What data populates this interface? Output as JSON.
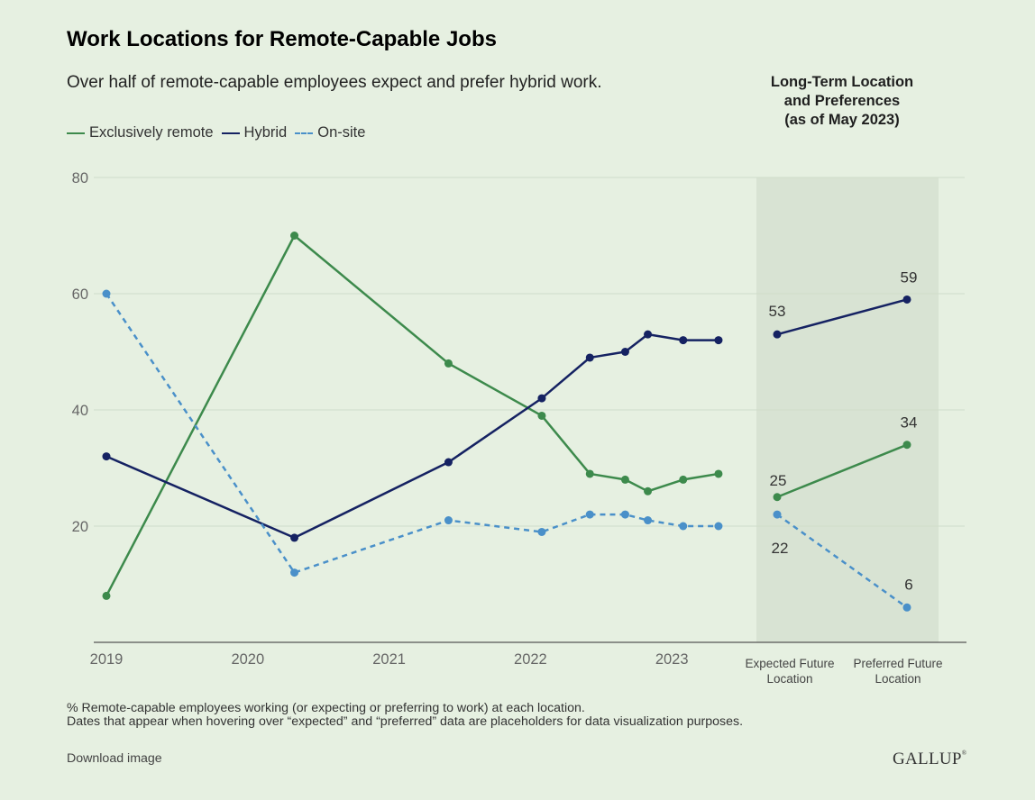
{
  "title": "Work Locations for Remote-Capable Jobs",
  "subtitle": "Over half of remote-capable employees expect and prefer hybrid work.",
  "side_panel": {
    "title_lines": [
      "Long-Term Location",
      "and Preferences",
      "(as of May 2023)"
    ]
  },
  "legend": [
    {
      "label": "Exclusively remote",
      "color": "#3d8a4c",
      "dashed": false
    },
    {
      "label": "Hybrid",
      "color": "#152262",
      "dashed": false
    },
    {
      "label": "On-site",
      "color": "#4a90c9",
      "dashed": true
    }
  ],
  "footnote": {
    "line1": "% Remote-capable employees working (or expecting or preferring to work) at each location.",
    "line2": "Dates that appear when hovering over “expected” and “preferred” data are placeholders for data visualization purposes."
  },
  "download_label": "Download image",
  "brand": {
    "name": "GALLUP",
    "mark": "®"
  },
  "chart_data": [
    {
      "type": "line",
      "title": "Work Locations for Remote-Capable Jobs",
      "subtitle": "Over half of remote-capable employees expect and prefer hybrid work.",
      "xlabel": "",
      "ylabel": "",
      "x": [
        2019.0,
        2020.33,
        2021.42,
        2022.08,
        2022.42,
        2022.67,
        2022.83,
        2023.08,
        2023.33
      ],
      "x_ticks": [
        2019,
        2020,
        2021,
        2022,
        2023
      ],
      "xlim": [
        2019,
        2023.33
      ],
      "ylim": [
        0,
        80
      ],
      "y_ticks": [
        20,
        40,
        60,
        80
      ],
      "grid": true,
      "legend_position": "top-left",
      "series": [
        {
          "name": "Exclusively remote",
          "color": "#3d8a4c",
          "dashed": false,
          "x": [
            2019.0,
            2020.33,
            2021.42,
            2022.08,
            2022.42,
            2022.67,
            2022.83,
            2023.08,
            2023.33
          ],
          "values": [
            8,
            70,
            48,
            39,
            29,
            28,
            26,
            28,
            29
          ]
        },
        {
          "name": "Hybrid",
          "color": "#152262",
          "dashed": false,
          "x": [
            2019.0,
            2020.33,
            2021.42,
            2022.08,
            2022.42,
            2022.67,
            2022.83,
            2023.08,
            2023.33
          ],
          "values": [
            32,
            18,
            31,
            42,
            49,
            50,
            53,
            52,
            52
          ]
        },
        {
          "name": "On-site",
          "color": "#4a90c9",
          "dashed": true,
          "x": [
            2019.0,
            2020.33,
            2021.42,
            2022.08,
            2022.42,
            2022.67,
            2022.83,
            2023.08,
            2023.33
          ],
          "values": [
            60,
            12,
            21,
            19,
            22,
            22,
            21,
            20,
            20
          ]
        }
      ]
    },
    {
      "type": "line",
      "title": "Long-Term Location and Preferences (as of May 2023)",
      "categories": [
        "Expected Future Location",
        "Preferred Future Location"
      ],
      "category_label_lines": [
        [
          "Expected Future",
          "Location"
        ],
        [
          "Preferred Future",
          "Location"
        ]
      ],
      "ylim": [
        0,
        80
      ],
      "series": [
        {
          "name": "Hybrid",
          "color": "#152262",
          "dashed": false,
          "values": [
            53,
            59
          ]
        },
        {
          "name": "Exclusively remote",
          "color": "#3d8a4c",
          "dashed": false,
          "values": [
            25,
            34
          ]
        },
        {
          "name": "On-site",
          "color": "#4a90c9",
          "dashed": true,
          "values": [
            22,
            6
          ]
        }
      ]
    }
  ]
}
